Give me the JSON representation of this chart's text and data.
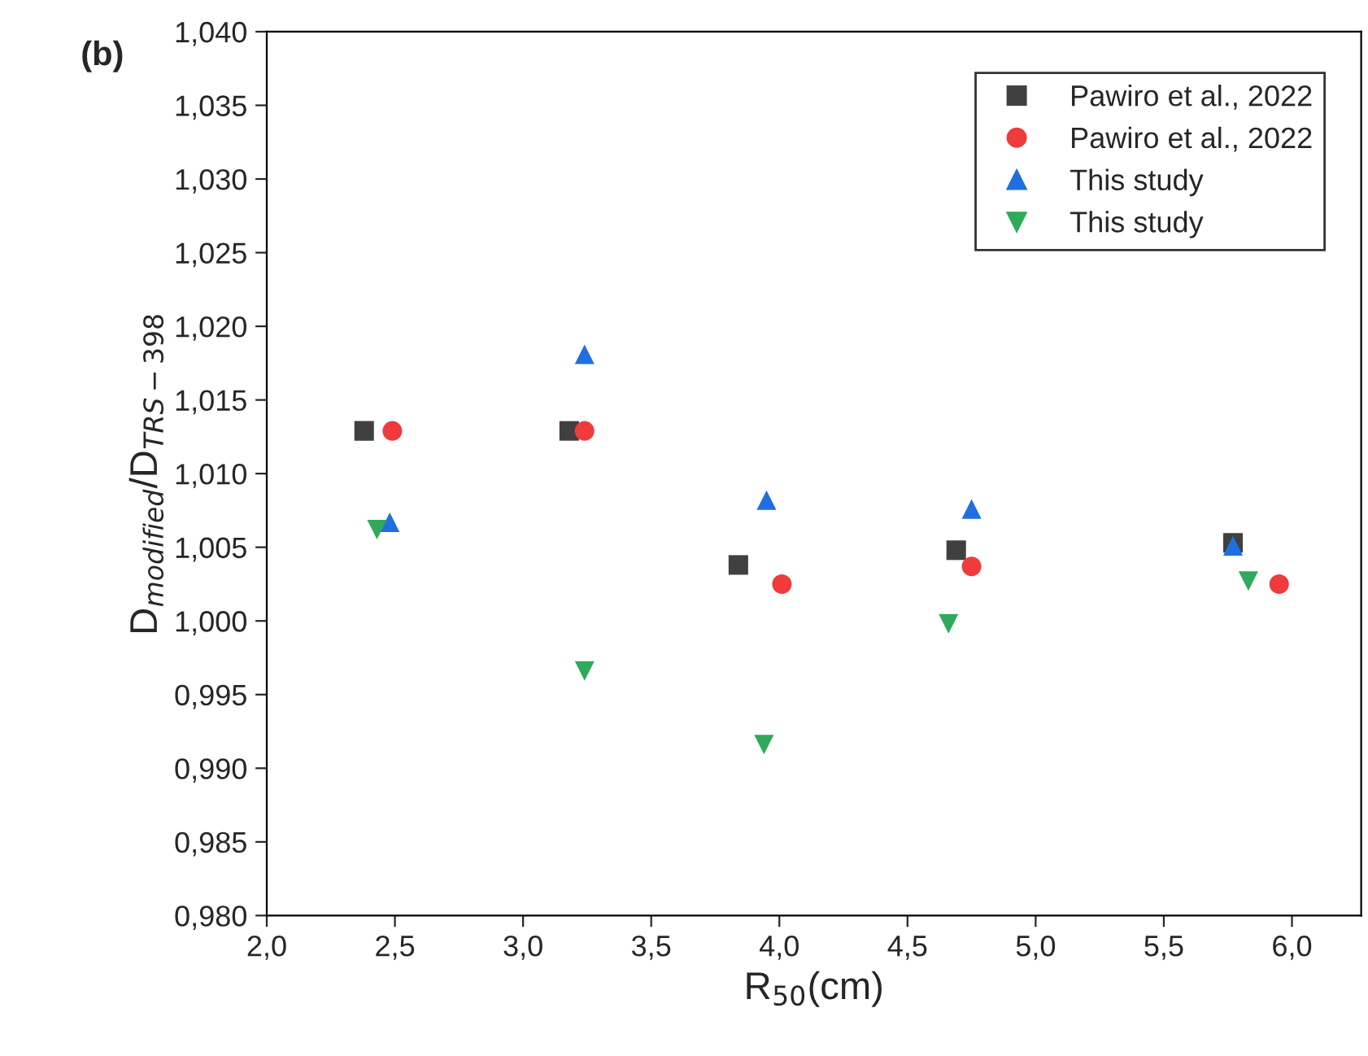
{
  "chart_data": {
    "type": "scatter",
    "xlabel": "R$_{50}$(cm)",
    "ylabel": "D$_{modified}$/D$_{TRS−398}$",
    "annotations": [
      "(b)"
    ],
    "series": [
      {
        "name": "Pawiro et al., 2022",
        "color": "#404040",
        "marker": "square",
        "x": [
          2.38,
          3.18,
          3.84,
          4.69,
          5.77
        ],
        "values": [
          1.0129,
          1.0129,
          1.0038,
          1.0048,
          1.0053
        ]
      },
      {
        "name": "Pawiro et al., 2022",
        "color": "#ef3b3b",
        "marker": "circle",
        "x": [
          2.49,
          3.24,
          4.01,
          4.75,
          5.95
        ],
        "values": [
          1.0129,
          1.0129,
          1.0025,
          1.0037,
          1.0025
        ]
      },
      {
        "name": "This study",
        "color": "#1f6fe0",
        "marker": "triangle",
        "x": [
          2.48,
          3.24,
          3.95,
          4.75,
          5.77
        ],
        "values": [
          1.0067,
          1.0181,
          1.0082,
          1.0076,
          1.0051
        ]
      },
      {
        "name": "This study",
        "color": "#2eaa5a",
        "marker": "triangle_down",
        "x": [
          2.43,
          3.24,
          3.94,
          4.66,
          5.83
        ],
        "values": [
          1.0062,
          0.9966,
          0.9916,
          0.9998,
          1.0027
        ]
      }
    ],
    "xlim": [
      2.0,
      6.27
    ],
    "xticks": [
      {
        "value": 2.0,
        "label": "2,0"
      },
      {
        "value": 2.5,
        "label": "2,5"
      },
      {
        "value": 3.0,
        "label": "3,0"
      },
      {
        "value": 3.5,
        "label": "3,5"
      },
      {
        "value": 4.0,
        "label": "4,0"
      },
      {
        "value": 4.5,
        "label": "4,5"
      },
      {
        "value": 5.0,
        "label": "5,0"
      },
      {
        "value": 5.5,
        "label": "5,5"
      },
      {
        "value": 6.0,
        "label": "6,0"
      }
    ],
    "ylim": [
      0.98,
      1.04
    ],
    "yticks": [
      {
        "value": 0.98,
        "label": "0,980"
      },
      {
        "value": 0.985,
        "label": "0,985"
      },
      {
        "value": 0.99,
        "label": "0,990"
      },
      {
        "value": 0.995,
        "label": "0,995"
      },
      {
        "value": 1.0,
        "label": "1,000"
      },
      {
        "value": 1.005,
        "label": "1,005"
      },
      {
        "value": 1.01,
        "label": "1,010"
      },
      {
        "value": 1.015,
        "label": "1,015"
      },
      {
        "value": 1.02,
        "label": "1,020"
      },
      {
        "value": 1.025,
        "label": "1,025"
      },
      {
        "value": 1.03,
        "label": "1,030"
      },
      {
        "value": 1.035,
        "label": "1,035"
      },
      {
        "value": 1.04,
        "label": "1,040"
      }
    ],
    "grid": false,
    "legend": "top right"
  }
}
